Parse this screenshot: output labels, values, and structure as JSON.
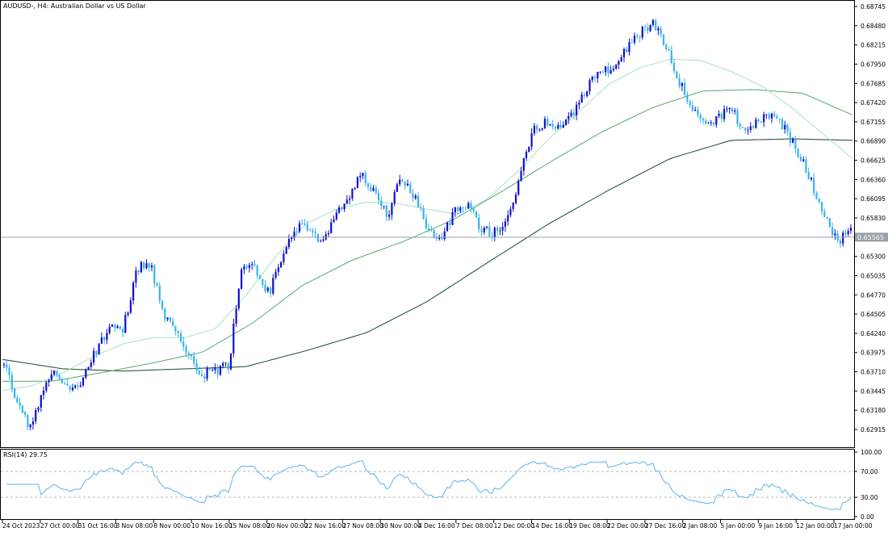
{
  "header": {
    "title": "AUDUSD-, H4:  Australian Dollar vs US Dollar"
  },
  "rsi": {
    "label": "RSI(14) 29.75",
    "value": 29.75,
    "ticks": [
      "100.00",
      "70.00",
      "30.00",
      "0.00"
    ],
    "levels": [
      70,
      30
    ],
    "line_color": "#5DB3E8"
  },
  "colors": {
    "bull_candle": "#1010CC",
    "bear_candle": "#36B4EE",
    "ma_fast": "#A8E3C2",
    "ma_mid": "#56A86C",
    "ma_slow": "#2C5A3C",
    "current_price_line": "#9AA1A8",
    "price_tag_bg": "#9AA1A8"
  },
  "chart_data": {
    "type": "candlestick",
    "symbol": "AUDUSD-",
    "timeframe": "H4",
    "ylim": [
      0.627,
      0.688
    ],
    "y_ticks": [
      "0.68745",
      "0.68480",
      "0.68215",
      "0.67950",
      "0.67685",
      "0.67420",
      "0.67155",
      "0.66890",
      "0.66625",
      "0.66360",
      "0.66095",
      "0.65830",
      "0.65565",
      "0.65300",
      "0.65035",
      "0.64770",
      "0.64505",
      "0.64240",
      "0.63975",
      "0.63710",
      "0.63445",
      "0.63180",
      "0.62915"
    ],
    "x_ticks": [
      "24 Oct 2023",
      "27 Oct 00:00",
      "31 Oct 16:00",
      "3 Nov 08:00",
      "8 Nov 00:00",
      "10 Nov 16:00",
      "15 Nov 08:00",
      "20 Nov 00:00",
      "22 Nov 16:00",
      "27 Nov 08:00",
      "30 Nov 00:00",
      "4 Dec 16:00",
      "7 Dec 08:00",
      "12 Dec 00:00",
      "14 Dec 16:00",
      "19 Dec 08:00",
      "22 Dec 00:00",
      "27 Dec 16:00",
      "2 Jan 08:00",
      "5 Jan 00:00",
      "9 Jan 16:00",
      "12 Jan 00:00",
      "17 Jan 00:00"
    ],
    "current_price": 0.65565,
    "current_price_label": "0.65565",
    "price_path": [
      0.638,
      0.633,
      0.6292,
      0.6352,
      0.6372,
      0.6342,
      0.6362,
      0.6402,
      0.6432,
      0.6428,
      0.6512,
      0.6522,
      0.6452,
      0.6422,
      0.6392,
      0.6368,
      0.6372,
      0.6382,
      0.6525,
      0.6512,
      0.6478,
      0.6532,
      0.6568,
      0.6572,
      0.6552,
      0.6582,
      0.6612,
      0.6645,
      0.6618,
      0.6588,
      0.6642,
      0.6612,
      0.6572,
      0.6548,
      0.6592,
      0.6602,
      0.657,
      0.6562,
      0.6578,
      0.6642,
      0.6702,
      0.6718,
      0.6705,
      0.6728,
      0.6762,
      0.6782,
      0.6792,
      0.6812,
      0.6838,
      0.6852,
      0.6822,
      0.6772,
      0.6732,
      0.6712,
      0.6722,
      0.6732,
      0.6702,
      0.6718,
      0.6722,
      0.6708,
      0.6672,
      0.6635,
      0.6582,
      0.6552,
      0.6563
    ],
    "ma_fast": [
      0.6345,
      0.6352,
      0.637,
      0.6392,
      0.641,
      0.6418,
      0.6418,
      0.643,
      0.6475,
      0.653,
      0.6575,
      0.6595,
      0.6605,
      0.6603,
      0.6595,
      0.6588,
      0.661,
      0.6648,
      0.6692,
      0.673,
      0.6768,
      0.679,
      0.6802,
      0.68,
      0.6785,
      0.6765,
      0.6735,
      0.67,
      0.6665
    ],
    "ma_mid": [
      0.6358,
      0.6358,
      0.637,
      0.6383,
      0.6398,
      0.6438,
      0.649,
      0.6525,
      0.655,
      0.658,
      0.662,
      0.6662,
      0.6702,
      0.6735,
      0.6758,
      0.676,
      0.6755,
      0.6725
    ],
    "ma_slow": [
      0.6388,
      0.6375,
      0.6372,
      0.6375,
      0.6378,
      0.64,
      0.6425,
      0.6468,
      0.6522,
      0.6575,
      0.6622,
      0.6665,
      0.669,
      0.6692,
      0.669
    ]
  }
}
